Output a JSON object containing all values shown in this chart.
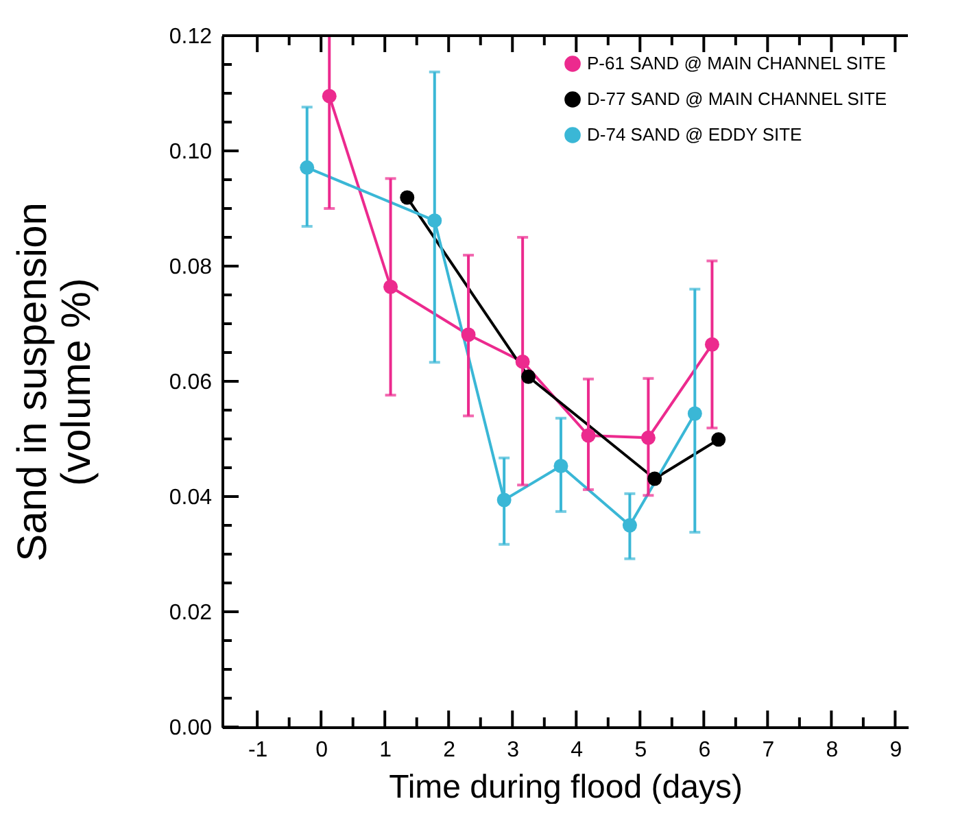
{
  "chart_data": {
    "type": "line",
    "xlabel": "Time during flood (days)",
    "ylabel": "Sand in suspension (volume %)",
    "xlim": [
      -1.55,
      9.2
    ],
    "xticks": [
      {
        "value": -1,
        "label": "-1"
      },
      {
        "value": -0.5,
        "label": null
      },
      0,
      {
        "value": 0.5,
        "label": null
      },
      1,
      {
        "value": 1.5,
        "label": null
      },
      2,
      {
        "value": 2.5,
        "label": null
      },
      3,
      {
        "value": 3.5,
        "label": null
      },
      4,
      {
        "value": 4.5,
        "label": null
      },
      5,
      {
        "value": 5.5,
        "label": null
      },
      6,
      {
        "value": 6.5,
        "label": null
      },
      7,
      {
        "value": 7.5,
        "label": null
      },
      8,
      {
        "value": 8.5,
        "label": null
      },
      9
    ],
    "ylim": [
      0,
      0.12
    ],
    "yticks": [
      {
        "value": 0,
        "label": "0.00"
      },
      {
        "value": 0.005,
        "label": null
      },
      {
        "value": 0.01,
        "label": null
      },
      {
        "value": 0.015,
        "label": null
      },
      {
        "value": 0.02,
        "label": "0.02"
      },
      {
        "value": 0.025,
        "label": null
      },
      {
        "value": 0.03,
        "label": null
      },
      {
        "value": 0.035,
        "label": null
      },
      {
        "value": 0.04,
        "label": "0.04"
      },
      {
        "value": 0.045,
        "label": null
      },
      {
        "value": 0.05,
        "label": null
      },
      {
        "value": 0.055,
        "label": null
      },
      {
        "value": 0.06,
        "label": "0.06"
      },
      {
        "value": 0.065,
        "label": null
      },
      {
        "value": 0.07,
        "label": null
      },
      {
        "value": 0.075,
        "label": null
      },
      {
        "value": 0.08,
        "label": "0.08"
      },
      {
        "value": 0.085,
        "label": null
      },
      {
        "value": 0.09,
        "label": null
      },
      {
        "value": 0.095,
        "label": null
      },
      {
        "value": 0.1,
        "label": "0.10"
      },
      {
        "value": 0.105,
        "label": null
      },
      {
        "value": 0.11,
        "label": null
      },
      {
        "value": 0.115,
        "label": null
      },
      {
        "value": 0.12,
        "label": "0.12"
      }
    ],
    "grid": false,
    "legend": "top right",
    "marker": "circle",
    "line_style": "solid",
    "series": [
      {
        "name": "P-61 SAND @ MAIN CHANNEL SITE",
        "color": "#ec2a8e",
        "x": [
          0.13,
          1.09,
          2.31,
          3.16,
          4.19,
          5.13,
          6.13
        ],
        "values": [
          0.1095,
          0.0764,
          0.0681,
          0.0634,
          0.0506,
          0.0502,
          0.0664
        ],
        "errors": [
          [
            0.09,
            0.12
          ],
          [
            0.0576,
            0.0952
          ],
          [
            0.054,
            0.0819
          ],
          [
            0.042,
            0.085
          ],
          [
            0.0412,
            0.0604
          ],
          [
            0.0402,
            0.0605
          ],
          [
            0.0519,
            0.0809
          ]
        ]
      },
      {
        "name": "D-77 SAND @ MAIN CHANNEL SITE",
        "color": "#000000",
        "x": [
          1.35,
          3.25,
          5.23,
          6.23
        ],
        "values": [
          0.0919,
          0.0608,
          0.0431,
          0.0499
        ]
      },
      {
        "name": "D-74 SAND @ EDDY SITE",
        "color": "#3ab7d6",
        "x": [
          -0.22,
          1.78,
          2.87,
          3.76,
          4.84,
          5.86
        ],
        "values": [
          0.0971,
          0.0879,
          0.0394,
          0.0453,
          0.035,
          0.0544
        ],
        "errors": [
          [
            0.0869,
            0.1076
          ],
          [
            0.0633,
            0.1137
          ],
          [
            0.0317,
            0.0467
          ],
          [
            0.0374,
            0.0536
          ],
          [
            0.0292,
            0.0405
          ],
          [
            0.0338,
            0.076
          ]
        ]
      }
    ]
  }
}
